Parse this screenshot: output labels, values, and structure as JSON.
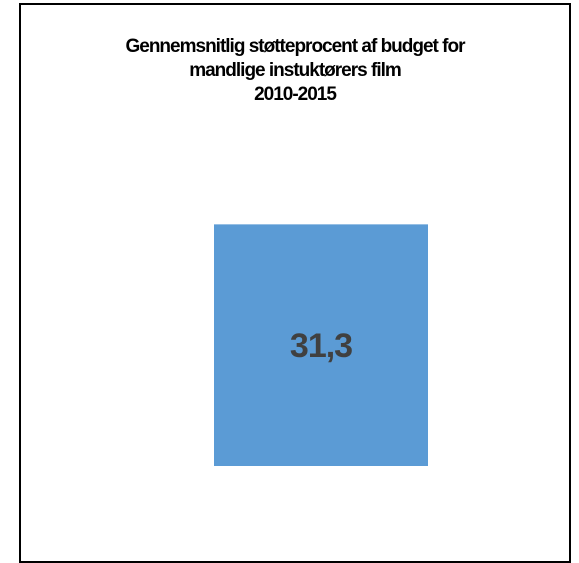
{
  "chart_data": {
    "type": "bar",
    "title": [
      "Gennemsnitlig støtteprocent af budget for",
      "mandlige instuktørers film",
      "2010-2015"
    ],
    "categories": [
      ""
    ],
    "values": [
      31.3
    ],
    "data_labels": [
      "31,3"
    ],
    "ylim": [
      0,
      50
    ],
    "grid": false,
    "legend": "none",
    "colors": {
      "bar": "#5b9bd5",
      "data_label": "#404040",
      "background": "#ffffff",
      "border": "#000000"
    }
  }
}
